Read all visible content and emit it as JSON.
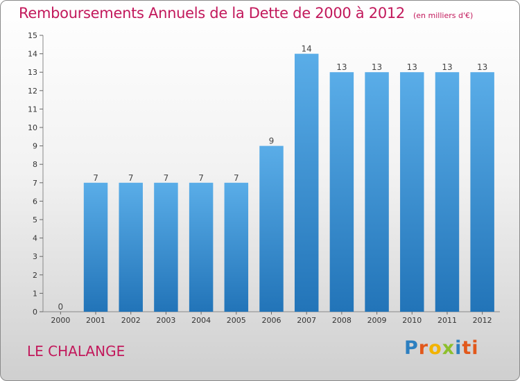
{
  "chart_data": {
    "type": "bar",
    "title": "Remboursements Annuels de la Dette de 2000 à 2012",
    "subtitle": "(en milliers d'€)",
    "categories": [
      "2000",
      "2001",
      "2002",
      "2003",
      "2004",
      "2005",
      "2006",
      "2007",
      "2008",
      "2009",
      "2010",
      "2011",
      "2012"
    ],
    "values": [
      0,
      7,
      7,
      7,
      7,
      7,
      9,
      14,
      13,
      13,
      13,
      13,
      13
    ],
    "data_labels": [
      "0",
      "7",
      "7",
      "7",
      "7",
      "7",
      "9",
      "14",
      "13",
      "13",
      "13",
      "13",
      "13"
    ],
    "ylim": [
      0,
      15
    ],
    "yticks": [
      0,
      1,
      2,
      3,
      4,
      5,
      6,
      7,
      8,
      9,
      10,
      11,
      12,
      13,
      14,
      15
    ],
    "xlabel": "",
    "ylabel": "",
    "grid": false,
    "bar_color": "#3a8fd6"
  },
  "commune": "LE CHALANGE",
  "logo": {
    "p1": "P",
    "p2": "r",
    "p3": "o",
    "p4": "x",
    "p5": "i",
    "p6": "ti"
  }
}
